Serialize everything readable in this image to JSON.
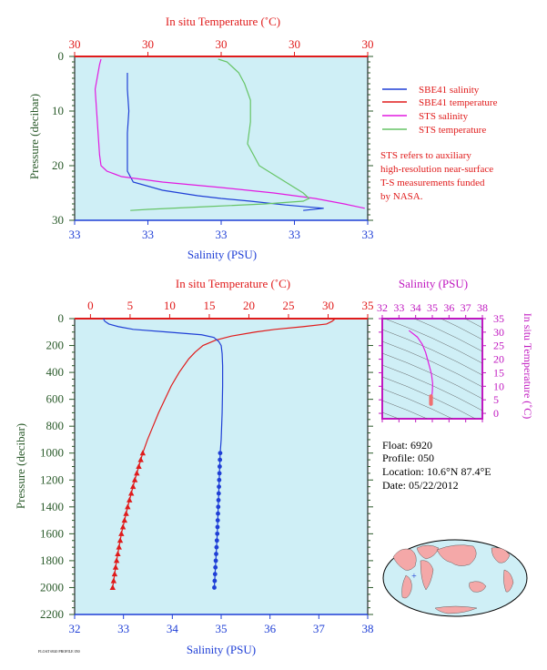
{
  "legend": {
    "items": [
      {
        "label": "SBE41 salinity",
        "color": "#1f3fd6"
      },
      {
        "label": "SBE41 temperature",
        "color": "#e01b1b"
      },
      {
        "label": "STS salinity",
        "color": "#e21ae0"
      },
      {
        "label": "STS temperature",
        "color": "#66c466"
      }
    ],
    "note_lines": [
      "STS refers to auxiliary",
      "high-resolution near-surface",
      "T-S measurements funded",
      "by NASA."
    ]
  },
  "float_info": {
    "float": "Float:  6920",
    "profile": "Profile:  050",
    "location": "Location:  10.6°N  87.4°E",
    "date": "Date:  05/22/2012"
  },
  "footer_text": "FLOAT 6920 PROFILE 050",
  "colors": {
    "salinity": "#1f3fd6",
    "temperature": "#e01b1b",
    "sts_salinity": "#e21ae0",
    "sts_temperature": "#66c466",
    "panel_bg": "#cfeff6",
    "pressure_axis": "#2a5a2a",
    "ts_axis": "#c018c0"
  },
  "chart_data": [
    {
      "type": "line",
      "name": "near-surface",
      "title": "In situ Temperature (˚C)",
      "xlabel": "Salinity (PSU)",
      "ylabel": "Pressure (decibar)",
      "top_ticks": [
        "30",
        "30",
        "30",
        "30",
        "30"
      ],
      "bottom_ticks": [
        "33",
        "33",
        "33",
        "33",
        "33"
      ],
      "yticks": [
        0,
        10,
        20,
        30
      ],
      "ylim": [
        30,
        0
      ],
      "x_norm_range": [
        0,
        1
      ],
      "series": [
        {
          "label_ref": "SBE41 salinity",
          "p": [
            3,
            6,
            10,
            14,
            18,
            21,
            23,
            24.5,
            25.5,
            26,
            26.5,
            27.2,
            27.8,
            28.2
          ],
          "x": [
            0.18,
            0.18,
            0.185,
            0.18,
            0.18,
            0.18,
            0.2,
            0.3,
            0.42,
            0.5,
            0.6,
            0.72,
            0.85,
            0.78
          ]
        },
        {
          "label_ref": "SBE41 temperature",
          "p": [
            0
          ],
          "x": [
            0.0
          ]
        },
        {
          "label_ref": "STS salinity",
          "p": [
            0.5,
            1.5,
            3,
            6,
            10,
            14,
            18,
            20,
            21,
            22,
            23,
            24,
            25,
            26,
            27,
            27.8
          ],
          "x": [
            0.09,
            0.085,
            0.08,
            0.07,
            0.075,
            0.08,
            0.085,
            0.09,
            0.11,
            0.16,
            0.3,
            0.5,
            0.68,
            0.82,
            0.92,
            0.99
          ]
        },
        {
          "label_ref": "STS temperature",
          "p": [
            0.5,
            1,
            3,
            5,
            8,
            12,
            16,
            20,
            23,
            25,
            26,
            26.5,
            27,
            27.5,
            28,
            28.2
          ],
          "x": [
            0.49,
            0.52,
            0.56,
            0.58,
            0.6,
            0.6,
            0.59,
            0.63,
            0.72,
            0.78,
            0.8,
            0.78,
            0.65,
            0.45,
            0.25,
            0.19
          ]
        }
      ]
    },
    {
      "type": "line",
      "name": "full-depth",
      "title": "In situ Temperature (˚C)",
      "xlabel": "Salinity (PSU)",
      "ylabel": "Pressure (decibar)",
      "temperature_ticks": [
        0,
        5,
        10,
        15,
        20,
        25,
        30,
        35
      ],
      "salinity_ticks": [
        32,
        33,
        34,
        35,
        36,
        37,
        38
      ],
      "pressure_ticks": [
        0,
        200,
        400,
        600,
        800,
        1000,
        1200,
        1400,
        1600,
        1800,
        2000,
        2200
      ],
      "ylim": [
        2200,
        0
      ],
      "temperature_range": [
        -2,
        35
      ],
      "salinity_range": [
        32,
        38
      ],
      "salinity": {
        "p": [
          0,
          10,
          20,
          40,
          60,
          80,
          100,
          120,
          140,
          170,
          200,
          260,
          350,
          500,
          700,
          900,
          1000,
          1200,
          1400,
          1600,
          1800,
          2000
        ],
        "values": [
          32.6,
          32.6,
          32.62,
          32.7,
          32.9,
          33.2,
          33.9,
          34.6,
          34.85,
          34.95,
          35.0,
          35.02,
          35.03,
          35.03,
          35.02,
          35.0,
          34.98,
          34.96,
          34.94,
          34.92,
          34.89,
          34.86
        ]
      },
      "salinity_marked_from": 1000,
      "temperature": {
        "p": [
          0,
          20,
          40,
          60,
          80,
          100,
          130,
          160,
          200,
          250,
          300,
          400,
          500,
          600,
          700,
          800,
          900,
          1000,
          1200,
          1400,
          1600,
          1800,
          2000
        ],
        "values": [
          30.9,
          30.5,
          29.8,
          26.8,
          23.3,
          20.8,
          17.8,
          15.8,
          14.2,
          13.2,
          12.4,
          11.2,
          10.2,
          9.4,
          8.6,
          7.9,
          7.2,
          6.6,
          5.6,
          4.7,
          3.9,
          3.3,
          2.8
        ]
      },
      "temperature_marked_from": 1000
    },
    {
      "type": "line",
      "name": "t-s diagram",
      "title": "Salinity (PSU)",
      "ylabel": "In situ Temperature (˚C)",
      "xticks": [
        32,
        33,
        34,
        35,
        36,
        37,
        38
      ],
      "yticks": [
        0,
        5,
        10,
        15,
        20,
        25,
        30,
        35
      ],
      "xlim": [
        32,
        38
      ],
      "ylim": [
        -2,
        35
      ],
      "series": [
        {
          "salinity": [
            33.6,
            34.1,
            34.4,
            34.6,
            34.8,
            34.95,
            35.02,
            35.0,
            34.9
          ],
          "temperature": [
            30.6,
            28.2,
            25.5,
            22.5,
            18.0,
            14.5,
            11.0,
            8.0,
            2.8
          ]
        }
      ],
      "highlighted_range": {
        "temperature": [
          2.8,
          7.0
        ],
        "salinity": [
          34.86,
          34.98
        ]
      }
    }
  ]
}
